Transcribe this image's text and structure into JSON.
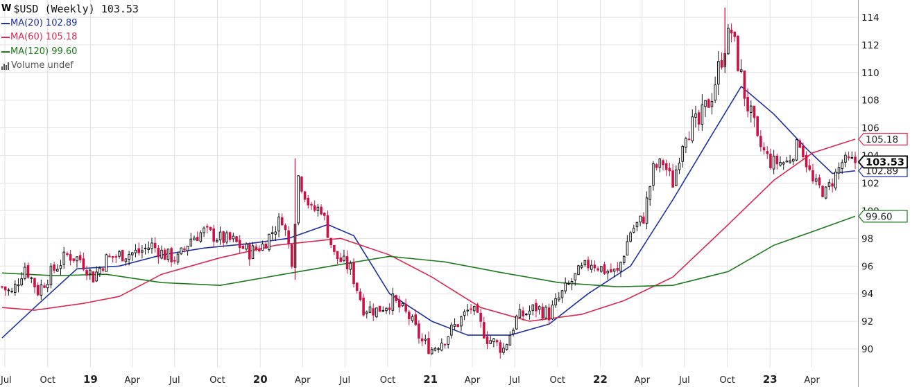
{
  "chart_data": {
    "type": "candlestick",
    "title": "$USD (Weekly) 103.53",
    "title_icon": "W",
    "last_close": 103.53,
    "interval": "weekly",
    "x_range": [
      "2018-06-25",
      "2023-07-03"
    ],
    "ylim": [
      89,
      115
    ],
    "y_ticks": [
      90,
      92,
      94,
      96,
      98,
      100,
      102,
      104,
      106,
      108,
      110,
      112,
      114
    ],
    "x_tick_labels": [
      {
        "date": "2018-07-01",
        "label": "Jul",
        "bold": false
      },
      {
        "date": "2018-10-01",
        "label": "Oct",
        "bold": false
      },
      {
        "date": "2019-01-01",
        "label": "19",
        "bold": true
      },
      {
        "date": "2019-04-01",
        "label": "Apr",
        "bold": false
      },
      {
        "date": "2019-07-01",
        "label": "Jul",
        "bold": false
      },
      {
        "date": "2019-10-01",
        "label": "Oct",
        "bold": false
      },
      {
        "date": "2020-01-01",
        "label": "20",
        "bold": true
      },
      {
        "date": "2020-04-01",
        "label": "Apr",
        "bold": false
      },
      {
        "date": "2020-07-01",
        "label": "Jul",
        "bold": false
      },
      {
        "date": "2020-10-01",
        "label": "Oct",
        "bold": false
      },
      {
        "date": "2021-01-01",
        "label": "21",
        "bold": true
      },
      {
        "date": "2021-04-01",
        "label": "Apr",
        "bold": false
      },
      {
        "date": "2021-07-01",
        "label": "Jul",
        "bold": false
      },
      {
        "date": "2021-10-01",
        "label": "Oct",
        "bold": false
      },
      {
        "date": "2022-01-01",
        "label": "22",
        "bold": true
      },
      {
        "date": "2022-04-01",
        "label": "Apr",
        "bold": false
      },
      {
        "date": "2022-07-01",
        "label": "Jul",
        "bold": false
      },
      {
        "date": "2022-10-01",
        "label": "Oct",
        "bold": false
      },
      {
        "date": "2023-01-01",
        "label": "23",
        "bold": true
      },
      {
        "date": "2023-04-01",
        "label": "Apr",
        "bold": false
      }
    ],
    "legend": [
      {
        "label": "MA(20) 102.89",
        "color": "#1c2fa3"
      },
      {
        "label": "MA(60) 105.18",
        "color": "#d9284f"
      },
      {
        "label": "MA(120) 99.60",
        "color": "#1a7a1a"
      },
      {
        "label": "Volume undef",
        "color": "#555555"
      }
    ],
    "price_series": {
      "name": "$USD",
      "up_color": "#111111",
      "down_color": "#cc1144",
      "anchors": [
        [
          "2018-06-25",
          94.5
        ],
        [
          "2018-07-16",
          94.0
        ],
        [
          "2018-08-13",
          96.0
        ],
        [
          "2018-09-10",
          94.2
        ],
        [
          "2018-10-08",
          95.5
        ],
        [
          "2018-11-12",
          96.8
        ],
        [
          "2018-12-10",
          96.5
        ],
        [
          "2019-01-07",
          95.2
        ],
        [
          "2019-02-04",
          96.5
        ],
        [
          "2019-03-04",
          96.8
        ],
        [
          "2019-04-15",
          97.0
        ],
        [
          "2019-05-13",
          97.5
        ],
        [
          "2019-06-10",
          96.8
        ],
        [
          "2019-07-08",
          96.5
        ],
        [
          "2019-08-05",
          98.0
        ],
        [
          "2019-09-02",
          98.5
        ],
        [
          "2019-10-07",
          98.0
        ],
        [
          "2019-11-04",
          97.8
        ],
        [
          "2019-12-09",
          97.0
        ],
        [
          "2020-01-06",
          97.5
        ],
        [
          "2020-02-17",
          99.5
        ],
        [
          "2020-03-09",
          96.5
        ],
        [
          "2020-03-23",
          102.5
        ],
        [
          "2020-04-20",
          100.0
        ],
        [
          "2020-05-11",
          100.2
        ],
        [
          "2020-06-08",
          96.8
        ],
        [
          "2020-07-13",
          95.8
        ],
        [
          "2020-08-10",
          93.0
        ],
        [
          "2020-09-07",
          92.8
        ],
        [
          "2020-10-12",
          93.5
        ],
        [
          "2020-11-16",
          92.3
        ],
        [
          "2020-12-14",
          90.5
        ],
        [
          "2021-01-04",
          90.0
        ],
        [
          "2021-02-01",
          90.8
        ],
        [
          "2021-03-29",
          93.0
        ],
        [
          "2021-05-03",
          90.8
        ],
        [
          "2021-06-07",
          90.0
        ],
        [
          "2021-07-05",
          92.2
        ],
        [
          "2021-08-16",
          93.0
        ],
        [
          "2021-09-13",
          92.5
        ],
        [
          "2021-10-11",
          94.0
        ],
        [
          "2021-11-15",
          95.5
        ],
        [
          "2021-12-13",
          96.3
        ],
        [
          "2022-01-10",
          95.7
        ],
        [
          "2022-02-07",
          95.5
        ],
        [
          "2022-03-07",
          98.5
        ],
        [
          "2022-04-04",
          99.5
        ],
        [
          "2022-04-25",
          103.0
        ],
        [
          "2022-05-16",
          103.5
        ],
        [
          "2022-06-06",
          102.0
        ],
        [
          "2022-07-04",
          106.0
        ],
        [
          "2022-08-01",
          106.2
        ],
        [
          "2022-08-29",
          108.5
        ],
        [
          "2022-09-26",
          112.0
        ],
        [
          "2022-10-10",
          113.0
        ],
        [
          "2022-11-07",
          108.5
        ],
        [
          "2022-12-05",
          105.0
        ],
        [
          "2023-01-02",
          103.5
        ],
        [
          "2023-02-06",
          103.5
        ],
        [
          "2023-03-06",
          105.0
        ],
        [
          "2023-04-03",
          102.0
        ],
        [
          "2023-05-01",
          101.3
        ],
        [
          "2023-06-05",
          103.5
        ],
        [
          "2023-07-03",
          103.53
        ]
      ]
    },
    "series": [
      {
        "name": "MA(20)",
        "label": "MA(20) 102.89",
        "last_value": 102.89,
        "value_label": "102.89",
        "color": "#1c2fa3",
        "points": [
          [
            "2018-06-25",
            90.8
          ],
          [
            "2018-09-03",
            93.0
          ],
          [
            "2018-12-03",
            95.8
          ],
          [
            "2019-03-04",
            96.0
          ],
          [
            "2019-06-03",
            96.8
          ],
          [
            "2019-09-02",
            97.3
          ],
          [
            "2019-12-02",
            97.6
          ],
          [
            "2020-03-02",
            98.0
          ],
          [
            "2020-05-25",
            99.0
          ],
          [
            "2020-07-20",
            98.2
          ],
          [
            "2020-10-05",
            94.0
          ],
          [
            "2021-01-04",
            92.0
          ],
          [
            "2021-03-22",
            91.0
          ],
          [
            "2021-06-21",
            91.0
          ],
          [
            "2021-09-13",
            91.8
          ],
          [
            "2021-12-06",
            94.0
          ],
          [
            "2022-03-07",
            96.0
          ],
          [
            "2022-06-06",
            100.8
          ],
          [
            "2022-08-29",
            105.5
          ],
          [
            "2022-10-31",
            109.0
          ],
          [
            "2023-01-09",
            107.0
          ],
          [
            "2023-03-20",
            104.5
          ],
          [
            "2023-05-15",
            102.7
          ],
          [
            "2023-07-03",
            102.89
          ]
        ]
      },
      {
        "name": "MA(60)",
        "label": "MA(60) 105.18",
        "last_value": 105.18,
        "value_label": "105.18",
        "color": "#d9284f",
        "points": [
          [
            "2018-06-25",
            93.0
          ],
          [
            "2018-09-03",
            92.8
          ],
          [
            "2018-12-17",
            93.3
          ],
          [
            "2019-03-04",
            93.8
          ],
          [
            "2019-06-03",
            95.4
          ],
          [
            "2019-10-07",
            96.6
          ],
          [
            "2020-02-03",
            97.5
          ],
          [
            "2020-06-22",
            98.0
          ],
          [
            "2020-10-05",
            96.8
          ],
          [
            "2021-01-04",
            95.2
          ],
          [
            "2021-04-19",
            93.0
          ],
          [
            "2021-08-02",
            92.0
          ],
          [
            "2021-11-22",
            92.5
          ],
          [
            "2022-02-21",
            93.5
          ],
          [
            "2022-06-06",
            95.2
          ],
          [
            "2022-10-03",
            99.0
          ],
          [
            "2023-01-09",
            102.2
          ],
          [
            "2023-04-03",
            104.2
          ],
          [
            "2023-07-03",
            105.18
          ]
        ]
      },
      {
        "name": "MA(120)",
        "label": "MA(120) 99.60",
        "last_value": 99.6,
        "value_label": "99.60",
        "color": "#1a7a1a",
        "points": [
          [
            "2018-06-25",
            95.5
          ],
          [
            "2018-10-15",
            95.3
          ],
          [
            "2019-02-04",
            95.4
          ],
          [
            "2019-06-03",
            94.8
          ],
          [
            "2019-10-07",
            94.6
          ],
          [
            "2020-02-03",
            95.3
          ],
          [
            "2020-06-01",
            96.0
          ],
          [
            "2020-10-05",
            96.7
          ],
          [
            "2021-02-01",
            96.3
          ],
          [
            "2021-06-07",
            95.5
          ],
          [
            "2021-10-04",
            94.8
          ],
          [
            "2022-02-07",
            94.5
          ],
          [
            "2022-06-06",
            94.6
          ],
          [
            "2022-10-03",
            95.6
          ],
          [
            "2023-01-09",
            97.5
          ],
          [
            "2023-04-03",
            98.5
          ],
          [
            "2023-07-03",
            99.6
          ]
        ]
      }
    ],
    "price_label": {
      "value_label": "103.53",
      "value": 103.53,
      "color": "#000000"
    },
    "grid": true,
    "y_axis_side": "right"
  }
}
